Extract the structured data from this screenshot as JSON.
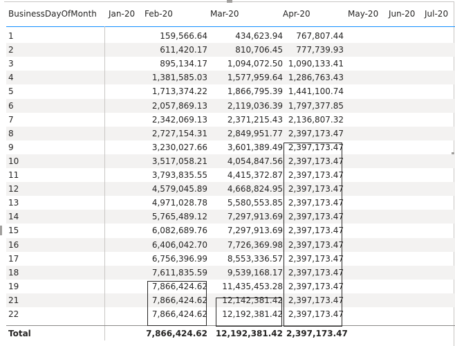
{
  "matrix": {
    "columns": [
      "BusinessDayOfMonth",
      "Jan-20",
      "Feb-20",
      "Mar-20",
      "Apr-20",
      "May-20",
      "Jun-20",
      "Jul-20"
    ],
    "rows": [
      {
        "day": "1",
        "feb": "159,566.64",
        "mar": "434,623.94",
        "apr": "767,807.44"
      },
      {
        "day": "2",
        "feb": "611,420.17",
        "mar": "810,706.45",
        "apr": "777,739.93"
      },
      {
        "day": "3",
        "feb": "895,134.17",
        "mar": "1,094,072.50",
        "apr": "1,090,133.41"
      },
      {
        "day": "4",
        "feb": "1,381,585.03",
        "mar": "1,577,959.64",
        "apr": "1,286,763.43"
      },
      {
        "day": "5",
        "feb": "1,713,374.22",
        "mar": "1,866,795.39",
        "apr": "1,441,100.74"
      },
      {
        "day": "6",
        "feb": "2,057,869.13",
        "mar": "2,119,036.39",
        "apr": "1,797,377.85"
      },
      {
        "day": "7",
        "feb": "2,342,069.13",
        "mar": "2,371,215.43",
        "apr": "2,136,807.32"
      },
      {
        "day": "8",
        "feb": "2,727,154.31",
        "mar": "2,849,951.77",
        "apr": "2,397,173.47"
      },
      {
        "day": "9",
        "feb": "3,230,027.66",
        "mar": "3,601,389.49",
        "apr": "2,397,173.47"
      },
      {
        "day": "10",
        "feb": "3,517,058.21",
        "mar": "4,054,847.56",
        "apr": "2,397,173.47"
      },
      {
        "day": "11",
        "feb": "3,793,835.55",
        "mar": "4,415,372.87",
        "apr": "2,397,173.47"
      },
      {
        "day": "12",
        "feb": "4,579,045.89",
        "mar": "4,668,824.95",
        "apr": "2,397,173.47"
      },
      {
        "day": "13",
        "feb": "4,971,028.78",
        "mar": "5,580,553.85",
        "apr": "2,397,173.47"
      },
      {
        "day": "14",
        "feb": "5,765,489.12",
        "mar": "7,297,913.69",
        "apr": "2,397,173.47"
      },
      {
        "day": "15",
        "feb": "6,082,689.76",
        "mar": "7,297,913.69",
        "apr": "2,397,173.47"
      },
      {
        "day": "16",
        "feb": "6,406,042.70",
        "mar": "7,726,369.98",
        "apr": "2,397,173.47"
      },
      {
        "day": "17",
        "feb": "6,756,396.99",
        "mar": "8,553,336.57",
        "apr": "2,397,173.47"
      },
      {
        "day": "18",
        "feb": "7,611,835.59",
        "mar": "9,539,168.17",
        "apr": "2,397,173.47"
      },
      {
        "day": "19",
        "feb": "7,866,424.62",
        "mar": "11,435,453.28",
        "apr": "2,397,173.47"
      },
      {
        "day": "21",
        "feb": "7,866,424.62",
        "mar": "12,142,381.42",
        "apr": "2,397,173.47"
      },
      {
        "day": "22",
        "feb": "7,866,424.62",
        "mar": "12,192,381.42",
        "apr": "2,397,173.47"
      }
    ],
    "total": {
      "label": "Total",
      "feb": "7,866,424.62",
      "mar": "12,192,381.42",
      "apr": "2,397,173.47"
    }
  },
  "colors": {
    "header_underline": "#118dff",
    "row_band": "#f3f2f1",
    "text": "#252423"
  }
}
